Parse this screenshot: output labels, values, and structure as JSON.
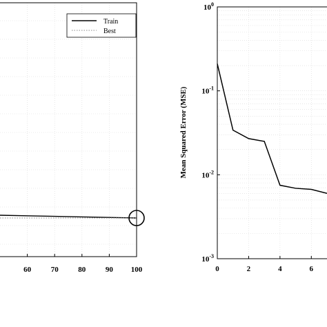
{
  "chart_data": [
    {
      "type": "line",
      "title": "",
      "xlabel": "",
      "ylabel": "",
      "xlim": [
        50,
        100
      ],
      "xticks": [
        60,
        70,
        80,
        90,
        100
      ],
      "x_tick_labels": [
        "60",
        "70",
        "80",
        "90",
        "100"
      ],
      "grid": true,
      "legend": "top-right",
      "legend_entries": [
        "Train",
        "Best"
      ],
      "series": [
        {
          "name": "Train",
          "x": [
            50,
            60,
            70,
            80,
            90,
            100
          ],
          "y": [
            0.0075,
            0.0074,
            0.0073,
            0.0072,
            0.0071,
            0.007
          ],
          "color": "#000000",
          "style": "solid"
        },
        {
          "name": "Best",
          "x": [
            50,
            100
          ],
          "y": [
            0.007,
            0.007
          ],
          "color": "#888888",
          "style": "dotted"
        }
      ],
      "best_marker": {
        "x": 100,
        "y": 0.007,
        "shape": "circle"
      }
    },
    {
      "type": "line",
      "title": "",
      "xlabel": "",
      "ylabel": "Mean Squared Error (MSE)",
      "yscale": "log",
      "ylim": [
        0.001,
        1
      ],
      "y_tick_labels": [
        {
          "base": "10",
          "exp": "0"
        },
        {
          "base": "10",
          "exp": "-1"
        },
        {
          "base": "10",
          "exp": "-2"
        },
        {
          "base": "10",
          "exp": "-3"
        }
      ],
      "xlim": [
        0,
        7
      ],
      "xticks": [
        0,
        2,
        4,
        6
      ],
      "x_tick_labels": [
        "0",
        "2",
        "4",
        "6"
      ],
      "grid": true,
      "series": [
        {
          "name": "",
          "x": [
            0,
            1,
            2,
            3,
            4,
            5,
            6,
            7
          ],
          "y": [
            0.21,
            0.034,
            0.027,
            0.025,
            0.0075,
            0.0069,
            0.0067,
            0.006
          ],
          "color": "#000000",
          "style": "solid"
        }
      ]
    }
  ]
}
